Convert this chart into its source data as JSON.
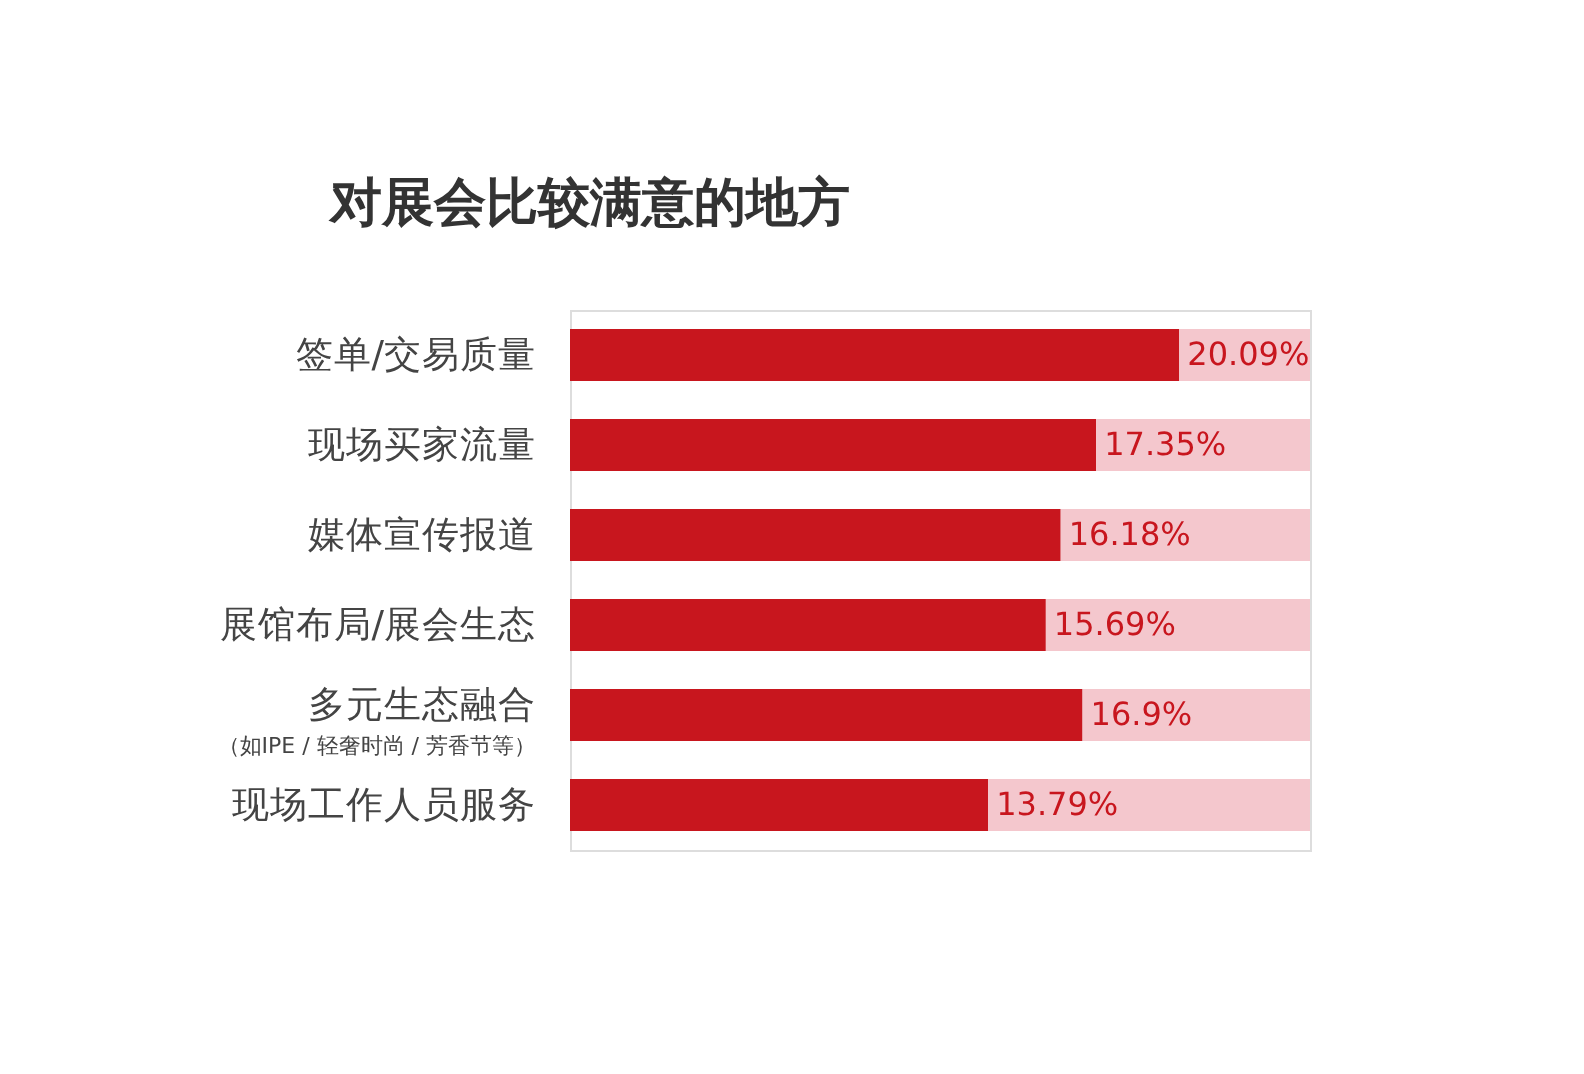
{
  "chart_data": {
    "type": "bar",
    "orientation": "horizontal",
    "stacked": true,
    "legend": false,
    "tick_labels": "y",
    "title": "对展会比较满意的地方",
    "categories": [
      "签单/交易质量",
      "现场买家流量",
      "媒体宣传报道",
      "展馆布局/展会生态",
      "多元生态融合（如IPE / 轻奢时尚 / 芳香节等）",
      "现场工作人员服务"
    ],
    "series": [
      {
        "color": "#c8161e",
        "values": [
          20.09,
          17.35,
          16.18,
          15.69,
          16.9,
          13.79
        ],
        "value_labels": [
          "20.09%",
          "17.35%",
          "16.18%",
          "15.69%",
          "16.9%",
          "13.79%"
        ]
      },
      {
        "color": "#f4c7cd",
        "values": [
          4.31,
          7.05,
          8.22,
          8.71,
          7.5,
          10.61
        ]
      }
    ]
  }
}
